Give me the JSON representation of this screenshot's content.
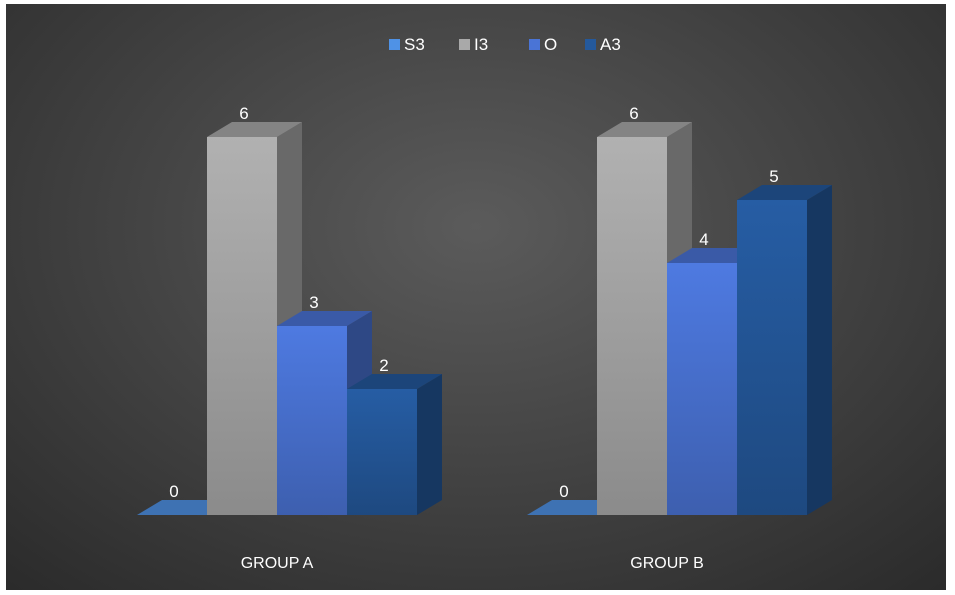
{
  "chart_data": {
    "type": "bar",
    "categories": [
      "GROUP A",
      "GROUP B"
    ],
    "series": [
      {
        "name": "S3",
        "values": [
          0,
          0
        ],
        "color": "#4f92e6"
      },
      {
        "name": "I3",
        "values": [
          6,
          6
        ],
        "color": "#a9a9a9"
      },
      {
        "name": "O",
        "values": [
          3,
          4
        ],
        "color": "#4a74d6"
      },
      {
        "name": "A3",
        "values": [
          2,
          5
        ],
        "color": "#24599c"
      }
    ],
    "title": "",
    "xlabel": "",
    "ylabel": "",
    "ylim": [
      0,
      6
    ],
    "grid": false,
    "legend_position": "top",
    "style": "3d-column",
    "background": "#3c3c3c"
  }
}
